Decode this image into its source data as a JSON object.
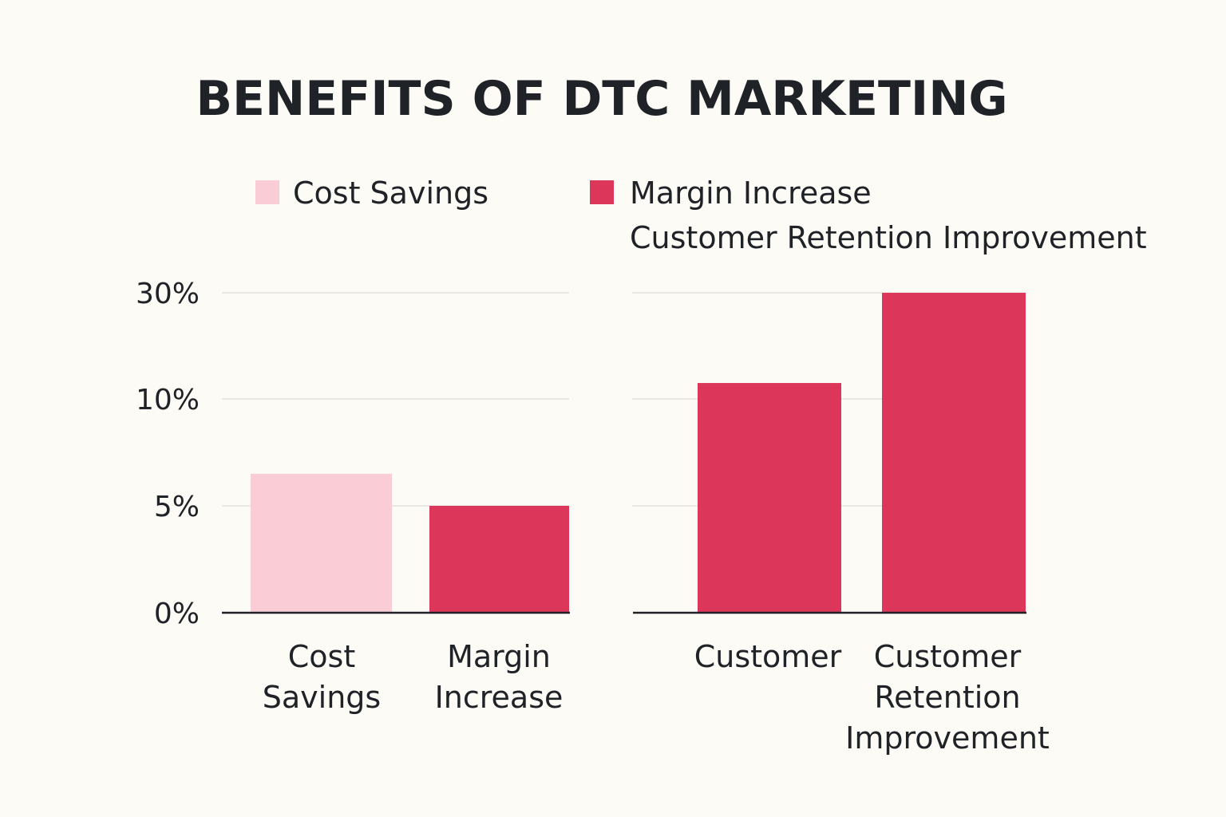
{
  "colors": {
    "background": "#fdfbf5",
    "light_pink": "#f9ccd6",
    "crimson": "#dc375a",
    "text": "#1f2226"
  },
  "chart_data": {
    "type": "bar",
    "title": "BENEFITS OF DTC MARKETING",
    "legend": {
      "placement": "top",
      "entries": [
        {
          "label": "Cost Savings",
          "color": "#f9ccd6"
        },
        {
          "label": "Margin Increase",
          "color": "#dc375a"
        },
        {
          "label": "Customer Retention Improvement"
        }
      ]
    },
    "y_ticks": [
      "30%",
      "10%",
      "5%",
      "0%"
    ],
    "y_tick_values": [
      30,
      10,
      5,
      0
    ],
    "grid": true,
    "panels": [
      {
        "bars": [
          {
            "category_lines": [
              "Cost",
              "Savings"
            ],
            "value": 6.5,
            "color": "#f9ccd6"
          },
          {
            "category_lines": [
              "Margin",
              "Increase"
            ],
            "value": 5,
            "color": "#dc375a"
          }
        ]
      },
      {
        "bars": [
          {
            "category_lines": [
              "Customer"
            ],
            "value": 13,
            "color": "#dc375a"
          },
          {
            "category_lines": [
              "Customer",
              "Retention",
              "Improvement"
            ],
            "value": 30,
            "color": "#dc375a"
          }
        ]
      }
    ]
  }
}
